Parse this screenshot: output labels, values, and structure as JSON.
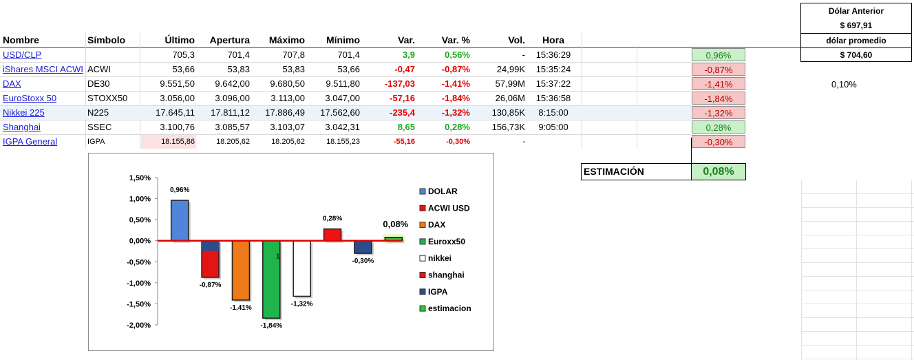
{
  "table": {
    "headers": {
      "nombre": "Nombre",
      "simbolo": "Símbolo",
      "ultimo": "Último",
      "apertura": "Apertura",
      "maximo": "Máximo",
      "minimo": "Mínimo",
      "var": "Var.",
      "varpct": "Var. %",
      "vol": "Vol.",
      "hora": "Hora"
    },
    "rows": [
      {
        "name": "USD/CLP",
        "symbol": "",
        "last": "705,3",
        "open": "701,4",
        "high": "707,8",
        "low": "701,4",
        "var": "3,9",
        "varpct": "0,56%",
        "vol": "-",
        "time": "15:36:29",
        "pct": "0,96%",
        "sign": "pos"
      },
      {
        "name": "iShares MSCI ACWI",
        "symbol": "ACWI",
        "last": "53,66",
        "open": "53,83",
        "high": "53,83",
        "low": "53,66",
        "var": "-0,47",
        "varpct": "-0,87%",
        "vol": "24,99K",
        "time": "15:35:24",
        "pct": "-0,87%",
        "sign": "neg"
      },
      {
        "name": "DAX",
        "symbol": "DE30",
        "last": "9.551,50",
        "open": "9.642,00",
        "high": "9.680,50",
        "low": "9.511,80",
        "var": "-137,03",
        "varpct": "-1,41%",
        "vol": "57,99M",
        "time": "15:37:22",
        "pct": "-1,41%",
        "sign": "neg"
      },
      {
        "name": "EuroStoxx 50",
        "symbol": "STOXX50",
        "last": "3.056,00",
        "open": "3.096,00",
        "high": "3.113,00",
        "low": "3.047,00",
        "var": "-57,16",
        "varpct": "-1,84%",
        "vol": "26,06M",
        "time": "15:36:58",
        "pct": "-1,84%",
        "sign": "neg"
      },
      {
        "name": "Nikkei 225",
        "symbol": "N225",
        "last": "17.645,11",
        "open": "17.811,12",
        "high": "17.886,49",
        "low": "17.562,60",
        "var": "-235,4",
        "varpct": "-1,32%",
        "vol": "130,85K",
        "time": "8:15:00",
        "pct": "-1,32%",
        "sign": "neg"
      },
      {
        "name": "Shanghai",
        "symbol": "SSEC",
        "last": "3.100,76",
        "open": "3.085,57",
        "high": "3.103,07",
        "low": "3.042,31",
        "var": "8,65",
        "varpct": "0,28%",
        "vol": "156,73K",
        "time": "9:05:00",
        "pct": "0,28%",
        "sign": "pos"
      },
      {
        "name": "IGPA General",
        "symbol": "IGPA",
        "last": "18.155,86",
        "open": "18.205,62",
        "high": "18.205,62",
        "low": "18.155,23",
        "var": "-55,16",
        "varpct": "-0,30%",
        "vol": "-",
        "time": "",
        "pct": "-0,30%",
        "sign": "neg"
      }
    ]
  },
  "dolar": {
    "anterior_label": "Dólar Anterior",
    "anterior_value": "$ 697,91",
    "promedio_label": "dólar promedio",
    "promedio_value": "$ 704,60"
  },
  "side_value": "0,10%",
  "estimacion": {
    "label": "ESTIMACIÓN",
    "value": "0,08%"
  },
  "chart_data": {
    "type": "bar",
    "categories": [
      "DOLAR",
      "ACWI USD",
      "DAX",
      "Euroxx50",
      "nikkei",
      "shanghai",
      "IGPA",
      "estimacion"
    ],
    "values": [
      0.96,
      -0.87,
      -1.41,
      -1.84,
      -1.32,
      0.28,
      -0.3,
      0.08
    ],
    "data_labels": [
      "0,96%",
      "-0,87%",
      "-1,41%",
      "-1,84%",
      "-1,32%",
      "0,28%",
      "-0,30%",
      "0,08%"
    ],
    "ylim": [
      -2.0,
      1.5
    ],
    "yticks": [
      "1,50%",
      "1,00%",
      "0,50%",
      "0,00%",
      "-0,50%",
      "-1,00%",
      "-1,50%",
      "-2,00%"
    ],
    "stray_label": "1",
    "colors": [
      "#4f86d9",
      "#e31414",
      "#ef7a1a",
      "#1fb54a",
      "#ffffff",
      "#ee1212",
      "#2d4d8a",
      "#3cbf3c"
    ],
    "legend_position": "right",
    "grid": false
  }
}
